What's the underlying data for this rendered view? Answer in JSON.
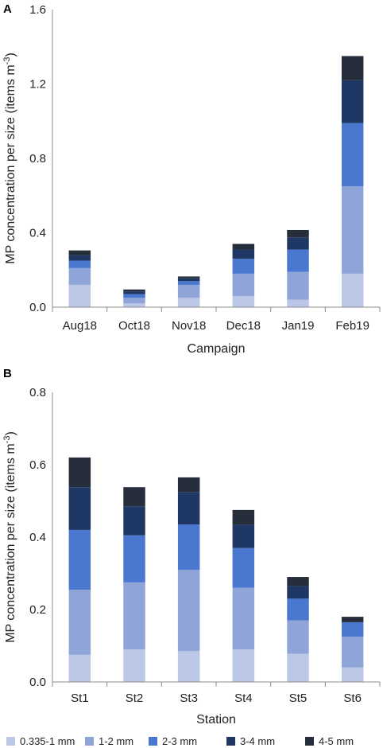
{
  "legend": {
    "items": [
      {
        "label": "0.335-1 mm",
        "color": "#bcc6e6"
      },
      {
        "label": "1-2 mm",
        "color": "#8fa5d8"
      },
      {
        "label": "2-3 mm",
        "color": "#4a77d0"
      },
      {
        "label": "3-4 mm",
        "color": "#1f3764"
      },
      {
        "label": "4-5 mm",
        "color": "#262d3b"
      }
    ]
  },
  "chart_data": [
    {
      "panel": "A",
      "type": "bar",
      "stacked": true,
      "xlabel": "Campaign",
      "ylabel": "MP concentration per size (items m",
      "ylabel_sup": "-3",
      "ylabel_close": ")",
      "ylim": [
        0,
        1.6
      ],
      "yticks": [
        "0.0",
        "0.4",
        "0.8",
        "1.2",
        "1.6"
      ],
      "categories": [
        "Aug18",
        "Oct18",
        "Nov18",
        "Dec18",
        "Jan19",
        "Feb19"
      ],
      "series": [
        {
          "name": "0.335-1 mm",
          "values": [
            0.12,
            0.02,
            0.05,
            0.06,
            0.04,
            0.18
          ]
        },
        {
          "name": "1-2 mm",
          "values": [
            0.09,
            0.03,
            0.07,
            0.12,
            0.15,
            0.47
          ]
        },
        {
          "name": "2-3 mm",
          "values": [
            0.04,
            0.02,
            0.02,
            0.08,
            0.12,
            0.34
          ]
        },
        {
          "name": "3-4 mm",
          "values": [
            0.03,
            0.015,
            0.015,
            0.05,
            0.065,
            0.23
          ]
        },
        {
          "name": "4-5 mm",
          "values": [
            0.025,
            0.01,
            0.01,
            0.03,
            0.04,
            0.13
          ]
        }
      ]
    },
    {
      "panel": "B",
      "type": "bar",
      "stacked": true,
      "xlabel": "Station",
      "ylabel": "MP concentration per size (items m",
      "ylabel_sup": "-3",
      "ylabel_close": ")",
      "ylim": [
        0,
        0.8
      ],
      "yticks": [
        "0.0",
        "0.2",
        "0.4",
        "0.6",
        "0.8"
      ],
      "categories": [
        "St1",
        "St2",
        "St3",
        "St4",
        "St5",
        "St6"
      ],
      "series": [
        {
          "name": "0.335-1 mm",
          "values": [
            0.075,
            0.09,
            0.085,
            0.09,
            0.078,
            0.04
          ]
        },
        {
          "name": "1-2 mm",
          "values": [
            0.18,
            0.185,
            0.225,
            0.17,
            0.092,
            0.085
          ]
        },
        {
          "name": "2-3 mm",
          "values": [
            0.165,
            0.13,
            0.125,
            0.11,
            0.06,
            0.04
          ]
        },
        {
          "name": "3-4 mm",
          "values": [
            0.118,
            0.08,
            0.09,
            0.065,
            0.035,
            0.0
          ]
        },
        {
          "name": "4-5 mm",
          "values": [
            0.082,
            0.053,
            0.04,
            0.04,
            0.025,
            0.015
          ]
        }
      ]
    }
  ]
}
